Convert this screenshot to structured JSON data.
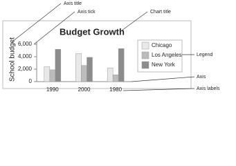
{
  "chart_data": {
    "type": "bar",
    "title": "Budget Growth",
    "y_label": "School budget",
    "categories": [
      "1990",
      "2000",
      "1980"
    ],
    "series": [
      {
        "name": "Chicago",
        "color": "#e8e8e8",
        "values": [
          2400,
          4500,
          2200
        ]
      },
      {
        "name": "Los Angeles",
        "color": "#bcbcbc",
        "values": [
          1900,
          2600,
          1100
        ]
      },
      {
        "name": "New York",
        "color": "#8c8c8c",
        "values": [
          5200,
          3900,
          5300
        ]
      }
    ],
    "ylim": [
      0,
      6000
    ],
    "yticks": [
      0,
      {
        "value": 2000,
        "label": "2,000"
      },
      {
        "value": 4000,
        "label": "4,000"
      },
      {
        "value": 6000,
        "label": "6,000"
      }
    ],
    "legend": "right",
    "annotations": [
      "Axis title",
      "Axis tick",
      "Chart title",
      "Legend",
      "Axis",
      "Axis labels"
    ]
  }
}
